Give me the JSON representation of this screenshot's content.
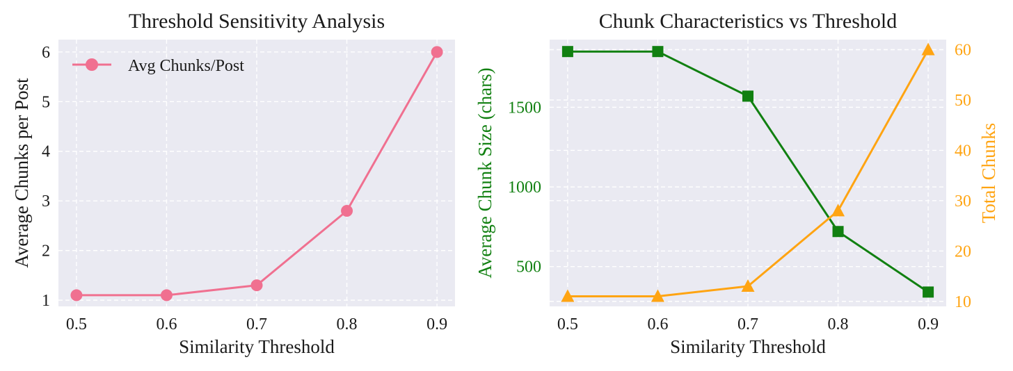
{
  "chart_data": [
    {
      "type": "line",
      "title": "Threshold Sensitivity Analysis",
      "xlabel": "Similarity Threshold",
      "ylabel": "Average Chunks per Post",
      "x": [
        0.5,
        0.6,
        0.7,
        0.8,
        0.9
      ],
      "xticks": [
        "0.5",
        "0.6",
        "0.7",
        "0.8",
        "0.9"
      ],
      "yticks": [
        "1",
        "2",
        "3",
        "4",
        "5",
        "6"
      ],
      "xlim": [
        0.48,
        0.92
      ],
      "ylim": [
        0.875,
        6.25
      ],
      "grid": true,
      "legend_position": "top-left",
      "series": [
        {
          "name": "Avg Chunks/Post",
          "values": [
            1.1,
            1.1,
            1.3,
            2.8,
            6.0
          ],
          "color": "#f07090",
          "marker": "circle"
        }
      ]
    },
    {
      "type": "line",
      "title": "Chunk Characteristics vs Threshold",
      "xlabel": "Similarity Threshold",
      "ylabel": "Average Chunk Size (chars)",
      "ylabel_right": "Total Chunks",
      "x": [
        0.5,
        0.6,
        0.7,
        0.8,
        0.9
      ],
      "xticks": [
        "0.5",
        "0.6",
        "0.7",
        "0.8",
        "0.9"
      ],
      "yticks_left": [
        "500",
        "1000",
        "1500"
      ],
      "yticks_right": [
        "10",
        "20",
        "30",
        "40",
        "50",
        "60"
      ],
      "xlim": [
        0.48,
        0.92
      ],
      "ylim_left": [
        250,
        1925
      ],
      "ylim_right": [
        9,
        62
      ],
      "grid": true,
      "series": [
        {
          "axis": "left",
          "values": [
            1850,
            1850,
            1570,
            720,
            340
          ],
          "color": "#118011",
          "marker": "square"
        },
        {
          "axis": "right",
          "values": [
            11,
            11,
            13,
            28,
            60
          ],
          "color": "#ffa412",
          "marker": "triangle"
        }
      ],
      "left_axis_color": "#118011",
      "right_axis_color": "#ffa412"
    }
  ]
}
